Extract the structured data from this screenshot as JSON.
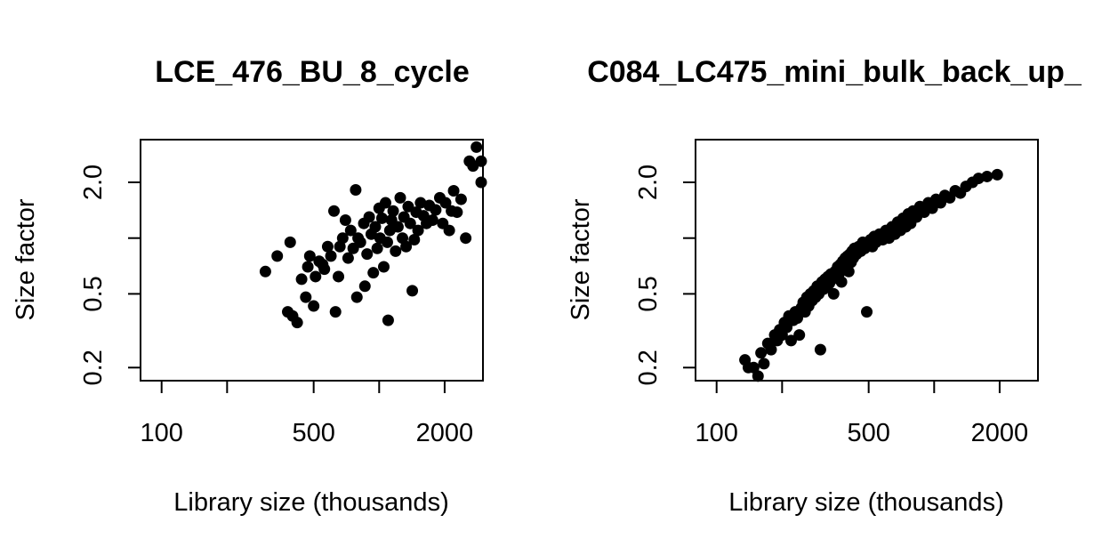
{
  "chart_data": [
    {
      "type": "scatter",
      "title": "LCE_476_BU_8_cycle",
      "xlabel": "Library size (thousands)",
      "ylabel": "Size factor",
      "x_scale": "log",
      "y_scale": "log",
      "xlim": [
        80,
        3000
      ],
      "ylim": [
        0.17,
        3.4
      ],
      "x_ticks": [
        100,
        200,
        500,
        1000,
        2000
      ],
      "x_tick_labels": [
        "100",
        "",
        "500",
        "",
        "2000"
      ],
      "y_ticks": [
        0.2,
        0.5,
        1.0,
        2.0
      ],
      "y_tick_labels": [
        "0.2",
        "0.5",
        "",
        "2.0"
      ],
      "grid": false,
      "point_color": "#000000",
      "points": [
        [
          300,
          0.66
        ],
        [
          340,
          0.8
        ],
        [
          380,
          0.4
        ],
        [
          390,
          0.95
        ],
        [
          400,
          0.38
        ],
        [
          420,
          0.35
        ],
        [
          440,
          0.6
        ],
        [
          460,
          0.48
        ],
        [
          470,
          0.7
        ],
        [
          480,
          0.8
        ],
        [
          500,
          0.43
        ],
        [
          510,
          0.62
        ],
        [
          530,
          0.75
        ],
        [
          550,
          0.72
        ],
        [
          560,
          0.68
        ],
        [
          580,
          0.9
        ],
        [
          600,
          0.8
        ],
        [
          620,
          1.4
        ],
        [
          630,
          0.4
        ],
        [
          650,
          0.62
        ],
        [
          660,
          0.9
        ],
        [
          680,
          1.0
        ],
        [
          700,
          1.25
        ],
        [
          720,
          0.78
        ],
        [
          740,
          1.1
        ],
        [
          760,
          0.88
        ],
        [
          780,
          1.82
        ],
        [
          790,
          0.48
        ],
        [
          800,
          1.0
        ],
        [
          820,
          0.95
        ],
        [
          850,
          1.2
        ],
        [
          860,
          0.55
        ],
        [
          880,
          0.82
        ],
        [
          900,
          1.3
        ],
        [
          920,
          1.05
        ],
        [
          940,
          0.65
        ],
        [
          960,
          1.15
        ],
        [
          980,
          0.88
        ],
        [
          1000,
          1.45
        ],
        [
          1010,
          1.0
        ],
        [
          1030,
          1.28
        ],
        [
          1050,
          0.7
        ],
        [
          1070,
          1.55
        ],
        [
          1090,
          0.95
        ],
        [
          1100,
          0.36
        ],
        [
          1120,
          1.1
        ],
        [
          1140,
          1.25
        ],
        [
          1160,
          1.4
        ],
        [
          1190,
          0.85
        ],
        [
          1220,
          1.15
        ],
        [
          1250,
          1.65
        ],
        [
          1280,
          1.0
        ],
        [
          1300,
          1.3
        ],
        [
          1330,
          0.9
        ],
        [
          1360,
          1.48
        ],
        [
          1390,
          1.2
        ],
        [
          1420,
          0.52
        ],
        [
          1450,
          0.98
        ],
        [
          1480,
          1.38
        ],
        [
          1510,
          1.1
        ],
        [
          1550,
          1.55
        ],
        [
          1600,
          1.32
        ],
        [
          1650,
          1.2
        ],
        [
          1700,
          1.5
        ],
        [
          1760,
          1.25
        ],
        [
          1820,
          1.42
        ],
        [
          1900,
          1.65
        ],
        [
          1960,
          1.2
        ],
        [
          2020,
          1.55
        ],
        [
          2100,
          1.1
        ],
        [
          2150,
          1.4
        ],
        [
          2200,
          1.8
        ],
        [
          2280,
          1.38
        ],
        [
          2380,
          1.62
        ],
        [
          2500,
          1.0
        ],
        [
          2600,
          2.6
        ],
        [
          2700,
          2.45
        ],
        [
          2800,
          3.1
        ],
        [
          2950,
          2.0
        ],
        [
          3050,
          2.6
        ]
      ]
    },
    {
      "type": "scatter",
      "title": "C084_LC475_mini_bulk_back_up_",
      "xlabel": "Library size (thousands)",
      "ylabel": "Size factor",
      "x_scale": "log",
      "y_scale": "log",
      "xlim": [
        80,
        3000
      ],
      "ylim": [
        0.17,
        3.4
      ],
      "x_ticks": [
        100,
        200,
        500,
        1000,
        2000
      ],
      "x_tick_labels": [
        "100",
        "",
        "500",
        "",
        "2000"
      ],
      "y_ticks": [
        0.2,
        0.5,
        1.0,
        2.0
      ],
      "y_tick_labels": [
        "0.2",
        "0.5",
        "",
        "2.0"
      ],
      "grid": false,
      "point_color": "#000000",
      "points": [
        [
          135,
          0.22
        ],
        [
          140,
          0.2
        ],
        [
          148,
          0.2
        ],
        [
          155,
          0.18
        ],
        [
          160,
          0.24
        ],
        [
          165,
          0.21
        ],
        [
          172,
          0.27
        ],
        [
          178,
          0.25
        ],
        [
          185,
          0.3
        ],
        [
          190,
          0.28
        ],
        [
          195,
          0.32
        ],
        [
          200,
          0.3
        ],
        [
          205,
          0.35
        ],
        [
          210,
          0.33
        ],
        [
          215,
          0.38
        ],
        [
          220,
          0.28
        ],
        [
          225,
          0.36
        ],
        [
          230,
          0.4
        ],
        [
          235,
          0.37
        ],
        [
          240,
          0.3
        ],
        [
          245,
          0.42
        ],
        [
          250,
          0.45
        ],
        [
          255,
          0.4
        ],
        [
          260,
          0.48
        ],
        [
          265,
          0.43
        ],
        [
          270,
          0.5
        ],
        [
          275,
          0.46
        ],
        [
          280,
          0.52
        ],
        [
          285,
          0.48
        ],
        [
          290,
          0.55
        ],
        [
          295,
          0.5
        ],
        [
          300,
          0.25
        ],
        [
          305,
          0.58
        ],
        [
          310,
          0.53
        ],
        [
          315,
          0.6
        ],
        [
          320,
          0.55
        ],
        [
          325,
          0.62
        ],
        [
          330,
          0.57
        ],
        [
          335,
          0.64
        ],
        [
          340,
          0.6
        ],
        [
          345,
          0.5
        ],
        [
          350,
          0.66
        ],
        [
          355,
          0.62
        ],
        [
          360,
          0.7
        ],
        [
          365,
          0.64
        ],
        [
          370,
          0.72
        ],
        [
          375,
          0.58
        ],
        [
          380,
          0.75
        ],
        [
          385,
          0.68
        ],
        [
          390,
          0.78
        ],
        [
          395,
          0.7
        ],
        [
          400,
          0.8
        ],
        [
          405,
          0.66
        ],
        [
          410,
          0.82
        ],
        [
          415,
          0.74
        ],
        [
          420,
          0.85
        ],
        [
          425,
          0.78
        ],
        [
          430,
          0.88
        ],
        [
          440,
          0.82
        ],
        [
          450,
          0.9
        ],
        [
          460,
          0.85
        ],
        [
          470,
          0.95
        ],
        [
          480,
          0.88
        ],
        [
          490,
          0.4
        ],
        [
          500,
          0.92
        ],
        [
          510,
          0.98
        ],
        [
          520,
          0.9
        ],
        [
          530,
          1.02
        ],
        [
          540,
          0.95
        ],
        [
          560,
          1.05
        ],
        [
          580,
          0.98
        ],
        [
          600,
          1.1
        ],
        [
          620,
          1.0
        ],
        [
          640,
          1.15
        ],
        [
          660,
          1.05
        ],
        [
          680,
          1.22
        ],
        [
          700,
          1.1
        ],
        [
          720,
          1.28
        ],
        [
          740,
          1.15
        ],
        [
          760,
          1.35
        ],
        [
          780,
          1.2
        ],
        [
          800,
          1.4
        ],
        [
          830,
          1.3
        ],
        [
          860,
          1.48
        ],
        [
          900,
          1.38
        ],
        [
          940,
          1.55
        ],
        [
          980,
          1.45
        ],
        [
          1020,
          1.62
        ],
        [
          1070,
          1.55
        ],
        [
          1120,
          1.7
        ],
        [
          1180,
          1.65
        ],
        [
          1250,
          1.8
        ],
        [
          1320,
          1.75
        ],
        [
          1400,
          1.9
        ],
        [
          1500,
          2.0
        ],
        [
          1600,
          2.1
        ],
        [
          1750,
          2.15
        ],
        [
          1950,
          2.2
        ]
      ]
    }
  ]
}
